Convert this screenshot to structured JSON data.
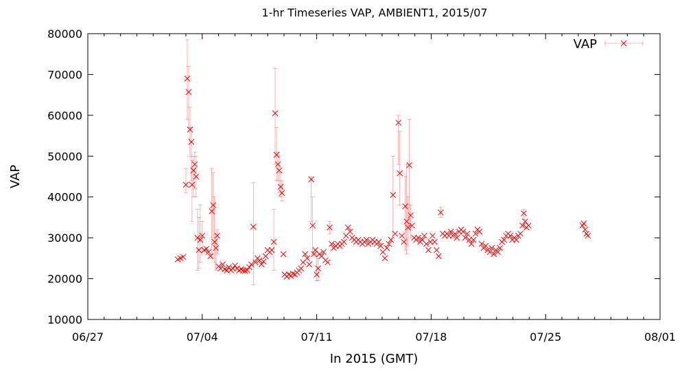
{
  "chart_data": {
    "type": "scatter",
    "title": "1-hr Timeseries VAP, AMBIENT1, 2015/07",
    "xlabel": "In 2015 (GMT)",
    "ylabel": "VAP",
    "xlim": [
      "06/27",
      "08/01"
    ],
    "ylim": [
      10000,
      80000
    ],
    "x_ticks": [
      "06/27",
      "07/04",
      "07/11",
      "07/18",
      "07/25",
      "08/01"
    ],
    "y_ticks": [
      "10000",
      "20000",
      "30000",
      "40000",
      "50000",
      "60000",
      "70000",
      "80000"
    ],
    "grid": false,
    "legend_position": "top-right",
    "series": [
      {
        "name": "VAP",
        "color": "#ff0000",
        "marker": "x",
        "error_bars": true,
        "points": [
          {
            "x": "2015-07-02T12:00",
            "y": 24700
          },
          {
            "x": "2015-07-02T16:00",
            "y": 25000
          },
          {
            "x": "2015-07-02T20:00",
            "y": 25300
          },
          {
            "x": "2015-07-03T00:00",
            "y": 43000,
            "low": 41000,
            "high": 47000
          },
          {
            "x": "2015-07-03T02:00",
            "y": 69000,
            "low": 59000,
            "high": 78500
          },
          {
            "x": "2015-07-03T04:00",
            "y": 65700,
            "low": 57000,
            "high": 72000
          },
          {
            "x": "2015-07-03T06:00",
            "y": 56500,
            "low": 50000,
            "high": 62000
          },
          {
            "x": "2015-07-03T08:00",
            "y": 53500,
            "low": 44000,
            "high": 57000
          },
          {
            "x": "2015-07-03T09:00",
            "y": 43000,
            "low": 34000,
            "high": 49000
          },
          {
            "x": "2015-07-03T11:00",
            "y": 46500,
            "low": 40000,
            "high": 50000
          },
          {
            "x": "2015-07-03T13:00",
            "y": 48000,
            "low": 42000,
            "high": 51000
          },
          {
            "x": "2015-07-03T15:00",
            "y": 45000,
            "low": 40000,
            "high": 50000
          },
          {
            "x": "2015-07-03T17:00",
            "y": 30000,
            "low": 22000,
            "high": 37000
          },
          {
            "x": "2015-07-03T19:00",
            "y": 27000,
            "low": 22500,
            "high": 35000
          },
          {
            "x": "2015-07-03T21:00",
            "y": 29500,
            "low": 24000,
            "high": 38000
          },
          {
            "x": "2015-07-04T00:00",
            "y": 30500,
            "low": 26000,
            "high": 34000
          },
          {
            "x": "2015-07-04T03:00",
            "y": 27000
          },
          {
            "x": "2015-07-04T06:00",
            "y": 27300
          },
          {
            "x": "2015-07-04T09:00",
            "y": 26500
          },
          {
            "x": "2015-07-04T12:00",
            "y": 25500
          },
          {
            "x": "2015-07-04T14:00",
            "y": 36500,
            "low": 25000,
            "high": 47000
          },
          {
            "x": "2015-07-04T16:00",
            "y": 38000,
            "low": 30000,
            "high": 46000
          },
          {
            "x": "2015-07-04T18:00",
            "y": 29000,
            "low": 24000,
            "high": 40000
          },
          {
            "x": "2015-07-04T20:00",
            "y": 27500,
            "low": 22000,
            "high": 31000
          },
          {
            "x": "2015-07-04T22:00",
            "y": 30500,
            "low": 26000,
            "high": 32000
          },
          {
            "x": "2015-07-05T00:00",
            "y": 23000
          },
          {
            "x": "2015-07-05T03:00",
            "y": 22500
          },
          {
            "x": "2015-07-05T06:00",
            "y": 23500
          },
          {
            "x": "2015-07-05T09:00",
            "y": 22300
          },
          {
            "x": "2015-07-05T12:00",
            "y": 22000
          },
          {
            "x": "2015-07-05T15:00",
            "y": 22800
          },
          {
            "x": "2015-07-05T18:00",
            "y": 22100
          },
          {
            "x": "2015-07-05T21:00",
            "y": 22500
          },
          {
            "x": "2015-07-06T00:00",
            "y": 23200
          },
          {
            "x": "2015-07-06T03:00",
            "y": 22500
          },
          {
            "x": "2015-07-06T06:00",
            "y": 22000
          },
          {
            "x": "2015-07-06T09:00",
            "y": 22300
          },
          {
            "x": "2015-07-06T12:00",
            "y": 22000
          },
          {
            "x": "2015-07-06T15:00",
            "y": 21900
          },
          {
            "x": "2015-07-06T18:00",
            "y": 22100
          },
          {
            "x": "2015-07-06T21:00",
            "y": 22800
          },
          {
            "x": "2015-07-07T00:00",
            "y": 23500
          },
          {
            "x": "2015-07-07T03:00",
            "y": 32700,
            "low": 18500,
            "high": 43500
          },
          {
            "x": "2015-07-07T06:00",
            "y": 24000
          },
          {
            "x": "2015-07-07T09:00",
            "y": 25000
          },
          {
            "x": "2015-07-07T12:00",
            "y": 24500
          },
          {
            "x": "2015-07-07T15:00",
            "y": 23500
          },
          {
            "x": "2015-07-07T18:00",
            "y": 24200
          },
          {
            "x": "2015-07-07T21:00",
            "y": 25500
          },
          {
            "x": "2015-07-08T00:00",
            "y": 27000
          },
          {
            "x": "2015-07-08T03:00",
            "y": 26500
          },
          {
            "x": "2015-07-08T06:00",
            "y": 27000
          },
          {
            "x": "2015-07-08T09:00",
            "y": 29000,
            "low": 22000,
            "high": 37000
          },
          {
            "x": "2015-07-08T11:00",
            "y": 60500,
            "low": 48000,
            "high": 71500
          },
          {
            "x": "2015-07-08T13:00",
            "y": 50300,
            "low": 44000,
            "high": 57000
          },
          {
            "x": "2015-07-08T15:00",
            "y": 48000,
            "low": 44000,
            "high": 51000
          },
          {
            "x": "2015-07-08T17:00",
            "y": 46500,
            "low": 41000,
            "high": 50000
          },
          {
            "x": "2015-07-08T19:00",
            "y": 42500,
            "low": 40000,
            "high": 46000
          },
          {
            "x": "2015-07-08T21:00",
            "y": 41000,
            "low": 39000,
            "high": 44000
          },
          {
            "x": "2015-07-08T23:00",
            "y": 26000
          },
          {
            "x": "2015-07-09T01:00",
            "y": 21000
          },
          {
            "x": "2015-07-09T04:00",
            "y": 20500
          },
          {
            "x": "2015-07-09T07:00",
            "y": 21000
          },
          {
            "x": "2015-07-09T10:00",
            "y": 20700
          },
          {
            "x": "2015-07-09T13:00",
            "y": 21200
          },
          {
            "x": "2015-07-09T16:00",
            "y": 21000
          },
          {
            "x": "2015-07-09T19:00",
            "y": 21500
          },
          {
            "x": "2015-07-09T22:00",
            "y": 22000
          },
          {
            "x": "2015-07-10T01:00",
            "y": 22500
          },
          {
            "x": "2015-07-10T04:00",
            "y": 24000
          },
          {
            "x": "2015-07-10T07:00",
            "y": 26000
          },
          {
            "x": "2015-07-10T10:00",
            "y": 25000
          },
          {
            "x": "2015-07-10T13:00",
            "y": 23500
          },
          {
            "x": "2015-07-10T16:00",
            "y": 44300,
            "low": 34000,
            "high": 45000
          },
          {
            "x": "2015-07-10T18:00",
            "y": 33000,
            "low": 26000,
            "high": 40000
          },
          {
            "x": "2015-07-10T20:00",
            "y": 26000
          },
          {
            "x": "2015-07-10T22:00",
            "y": 27000
          },
          {
            "x": "2015-07-11T00:00",
            "y": 21000,
            "low": 19500,
            "high": 26000
          },
          {
            "x": "2015-07-11T02:00",
            "y": 22500,
            "low": 19500,
            "high": 25000
          },
          {
            "x": "2015-07-11T04:00",
            "y": 26000
          },
          {
            "x": "2015-07-11T07:00",
            "y": 25500
          },
          {
            "x": "2015-07-11T10:00",
            "y": 26500
          },
          {
            "x": "2015-07-11T13:00",
            "y": 24500
          },
          {
            "x": "2015-07-11T16:00",
            "y": 24000
          },
          {
            "x": "2015-07-11T19:00",
            "y": 32500,
            "low": 31000,
            "high": 34000
          },
          {
            "x": "2015-07-11T22:00",
            "y": 28500
          },
          {
            "x": "2015-07-12T01:00",
            "y": 27500
          },
          {
            "x": "2015-07-12T04:00",
            "y": 28000
          },
          {
            "x": "2015-07-12T07:00",
            "y": 28500
          },
          {
            "x": "2015-07-12T10:00",
            "y": 28000
          },
          {
            "x": "2015-07-12T13:00",
            "y": 28500
          },
          {
            "x": "2015-07-12T16:00",
            "y": 29000
          },
          {
            "x": "2015-07-12T19:00",
            "y": 30500
          },
          {
            "x": "2015-07-12T22:00",
            "y": 32500
          },
          {
            "x": "2015-07-13T01:00",
            "y": 31500
          },
          {
            "x": "2015-07-13T04:00",
            "y": 30000
          },
          {
            "x": "2015-07-13T07:00",
            "y": 29500
          },
          {
            "x": "2015-07-13T10:00",
            "y": 29000
          },
          {
            "x": "2015-07-13T13:00",
            "y": 29500
          },
          {
            "x": "2015-07-13T16:00",
            "y": 29000
          },
          {
            "x": "2015-07-13T19:00",
            "y": 28500
          },
          {
            "x": "2015-07-13T22:00",
            "y": 29000
          },
          {
            "x": "2015-07-14T01:00",
            "y": 29500
          },
          {
            "x": "2015-07-14T04:00",
            "y": 28500
          },
          {
            "x": "2015-07-14T07:00",
            "y": 29000
          },
          {
            "x": "2015-07-14T10:00",
            "y": 29500
          },
          {
            "x": "2015-07-14T13:00",
            "y": 29000
          },
          {
            "x": "2015-07-14T16:00",
            "y": 28500
          },
          {
            "x": "2015-07-14T19:00",
            "y": 29000
          },
          {
            "x": "2015-07-14T22:00",
            "y": 28000
          },
          {
            "x": "2015-07-15T01:00",
            "y": 26500
          },
          {
            "x": "2015-07-15T04:00",
            "y": 25000
          },
          {
            "x": "2015-07-15T07:00",
            "y": 27500
          },
          {
            "x": "2015-07-15T10:00",
            "y": 28500
          },
          {
            "x": "2015-07-15T13:00",
            "y": 29500
          },
          {
            "x": "2015-07-15T16:00",
            "y": 40500,
            "low": 30000,
            "high": 50000
          },
          {
            "x": "2015-07-15T19:00",
            "y": 31000
          },
          {
            "x": "2015-07-16T00:00",
            "y": 58200,
            "low": 48000,
            "high": 60000
          },
          {
            "x": "2015-07-16T02:00",
            "y": 45800,
            "low": 38000,
            "high": 56000
          },
          {
            "x": "2015-07-16T05:00",
            "y": 30500
          },
          {
            "x": "2015-07-16T08:00",
            "y": 29000
          },
          {
            "x": "2015-07-16T10:00",
            "y": 37700,
            "low": 27000,
            "high": 45000
          },
          {
            "x": "2015-07-16T12:00",
            "y": 34000,
            "low": 26000,
            "high": 48000
          },
          {
            "x": "2015-07-16T14:00",
            "y": 32500,
            "low": 28000,
            "high": 40000
          },
          {
            "x": "2015-07-16T16:00",
            "y": 47800,
            "low": 33000,
            "high": 59000
          },
          {
            "x": "2015-07-16T18:00",
            "y": 35500,
            "low": 30000,
            "high": 38000
          },
          {
            "x": "2015-07-16T20:00",
            "y": 33000
          },
          {
            "x": "2015-07-16T23:00",
            "y": 30000
          },
          {
            "x": "2015-07-17T02:00",
            "y": 29500
          },
          {
            "x": "2015-07-17T05:00",
            "y": 30000
          },
          {
            "x": "2015-07-17T08:00",
            "y": 29000
          },
          {
            "x": "2015-07-17T11:00",
            "y": 29500
          },
          {
            "x": "2015-07-17T14:00",
            "y": 30500
          },
          {
            "x": "2015-07-17T17:00",
            "y": 28500
          },
          {
            "x": "2015-07-17T20:00",
            "y": 27000
          },
          {
            "x": "2015-07-17T23:00",
            "y": 29000
          },
          {
            "x": "2015-07-18T02:00",
            "y": 30500
          },
          {
            "x": "2015-07-18T05:00",
            "y": 29000
          },
          {
            "x": "2015-07-18T08:00",
            "y": 27000
          },
          {
            "x": "2015-07-18T11:00",
            "y": 25500
          },
          {
            "x": "2015-07-18T14:00",
            "y": 36200,
            "low": 35000,
            "high": 37500
          },
          {
            "x": "2015-07-18T17:00",
            "y": 31000
          },
          {
            "x": "2015-07-18T20:00",
            "y": 30500
          },
          {
            "x": "2015-07-18T23:00",
            "y": 31000
          },
          {
            "x": "2015-07-19T02:00",
            "y": 30500
          },
          {
            "x": "2015-07-19T05:00",
            "y": 31500
          },
          {
            "x": "2015-07-19T08:00",
            "y": 30500
          },
          {
            "x": "2015-07-19T11:00",
            "y": 31000
          },
          {
            "x": "2015-07-19T14:00",
            "y": 30000
          },
          {
            "x": "2015-07-19T17:00",
            "y": 31500
          },
          {
            "x": "2015-07-19T20:00",
            "y": 32000
          },
          {
            "x": "2015-07-19T23:00",
            "y": 31500
          },
          {
            "x": "2015-07-20T02:00",
            "y": 30000
          },
          {
            "x": "2015-07-20T05:00",
            "y": 31000
          },
          {
            "x": "2015-07-20T08:00",
            "y": 29500
          },
          {
            "x": "2015-07-20T11:00",
            "y": 28500
          },
          {
            "x": "2015-07-20T14:00",
            "y": 29500
          },
          {
            "x": "2015-07-20T17:00",
            "y": 31000
          },
          {
            "x": "2015-07-20T20:00",
            "y": 32000
          },
          {
            "x": "2015-07-20T23:00",
            "y": 31500
          },
          {
            "x": "2015-07-21T02:00",
            "y": 28500
          },
          {
            "x": "2015-07-21T05:00",
            "y": 27500
          },
          {
            "x": "2015-07-21T08:00",
            "y": 28000
          },
          {
            "x": "2015-07-21T11:00",
            "y": 27000
          },
          {
            "x": "2015-07-21T14:00",
            "y": 26500
          },
          {
            "x": "2015-07-21T17:00",
            "y": 27500
          },
          {
            "x": "2015-07-21T20:00",
            "y": 26000
          },
          {
            "x": "2015-07-21T23:00",
            "y": 27000
          },
          {
            "x": "2015-07-22T02:00",
            "y": 26500
          },
          {
            "x": "2015-07-22T05:00",
            "y": 27500
          },
          {
            "x": "2015-07-22T08:00",
            "y": 29000
          },
          {
            "x": "2015-07-22T11:00",
            "y": 29500
          },
          {
            "x": "2015-07-22T14:00",
            "y": 30500
          },
          {
            "x": "2015-07-22T17:00",
            "y": 31000
          },
          {
            "x": "2015-07-22T20:00",
            "y": 30500
          },
          {
            "x": "2015-07-22T23:00",
            "y": 29500
          },
          {
            "x": "2015-07-23T02:00",
            "y": 30000
          },
          {
            "x": "2015-07-23T05:00",
            "y": 29500
          },
          {
            "x": "2015-07-23T08:00",
            "y": 30500
          },
          {
            "x": "2015-07-23T11:00",
            "y": 31000
          },
          {
            "x": "2015-07-23T14:00",
            "y": 33000
          },
          {
            "x": "2015-07-23T16:00",
            "y": 36000,
            "low": 34500,
            "high": 37000
          },
          {
            "x": "2015-07-23T18:00",
            "y": 34000
          },
          {
            "x": "2015-07-23T20:00",
            "y": 32500
          },
          {
            "x": "2015-07-23T23:00",
            "y": 33000
          },
          {
            "x": "2015-07-27T06:00",
            "y": 33000
          },
          {
            "x": "2015-07-27T08:00",
            "y": 33500
          },
          {
            "x": "2015-07-27T10:00",
            "y": 32000
          },
          {
            "x": "2015-07-27T12:00",
            "y": 31000
          },
          {
            "x": "2015-07-27T14:00",
            "y": 30500
          }
        ]
      }
    ]
  }
}
